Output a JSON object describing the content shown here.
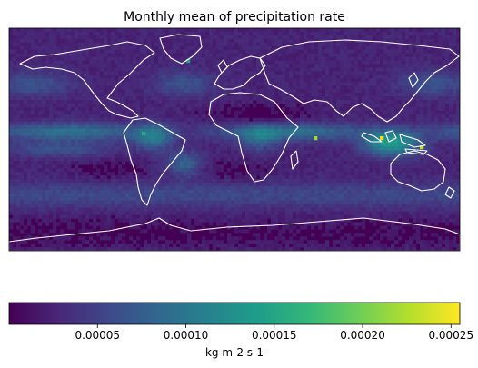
{
  "chart_data": {
    "type": "heatmap",
    "title": "Monthly mean of precipitation rate",
    "projection": "equirectangular global map, longitude -180 to 180, latitude -90 to 90",
    "colormap": "viridis",
    "map_features": [
      "coastlines"
    ],
    "coastline_color": "#ffffff",
    "grid": false,
    "colorbar": {
      "orientation": "horizontal",
      "placement": "bottom",
      "label": "kg m-2 s-1",
      "vmin": 0.0,
      "vmax": 0.000255,
      "ticks": [
        5e-05,
        0.0001,
        0.00015,
        0.0002,
        0.00025
      ],
      "tick_labels": [
        "0.00005",
        "0.00010",
        "0.00015",
        "0.00020",
        "0.00025"
      ]
    },
    "colormap_stops": [
      "#440154",
      "#482878",
      "#3e4989",
      "#31688e",
      "#26828e",
      "#1f9e89",
      "#35b779",
      "#6ece58",
      "#b5de2b",
      "#fde725"
    ]
  }
}
